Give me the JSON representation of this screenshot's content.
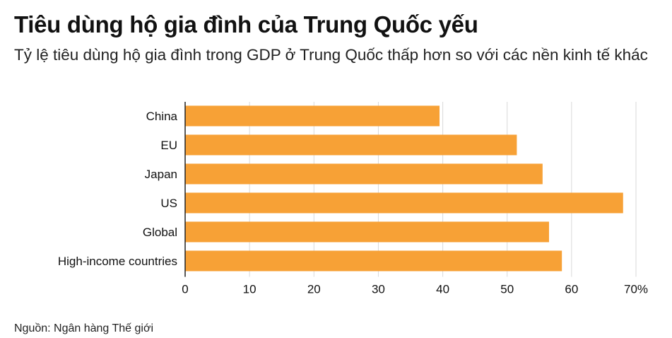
{
  "header": {
    "title": "Tiêu dùng hộ gia đình của Trung Quốc yếu",
    "subtitle": "Tỷ lệ tiêu dùng hộ gia đình trong GDP ở Trung Quốc thấp hơn so với các nền kinh tế khác"
  },
  "footer": {
    "source": "Nguồn: Ngân hàng Thế giới"
  },
  "chart_data": {
    "type": "bar",
    "orientation": "horizontal",
    "categories": [
      "China",
      "EU",
      "Japan",
      "US",
      "Global",
      "High-income countries"
    ],
    "values": [
      39.5,
      51.5,
      55.5,
      68,
      56.5,
      58.5
    ],
    "xlim": [
      0,
      70
    ],
    "xticks": [
      "0",
      "10",
      "20",
      "30",
      "40",
      "50",
      "60",
      "70%"
    ],
    "grid": true,
    "bar_color": "#f7a136",
    "grid_color": "#d9d9d9",
    "axis_color": "#222222"
  }
}
